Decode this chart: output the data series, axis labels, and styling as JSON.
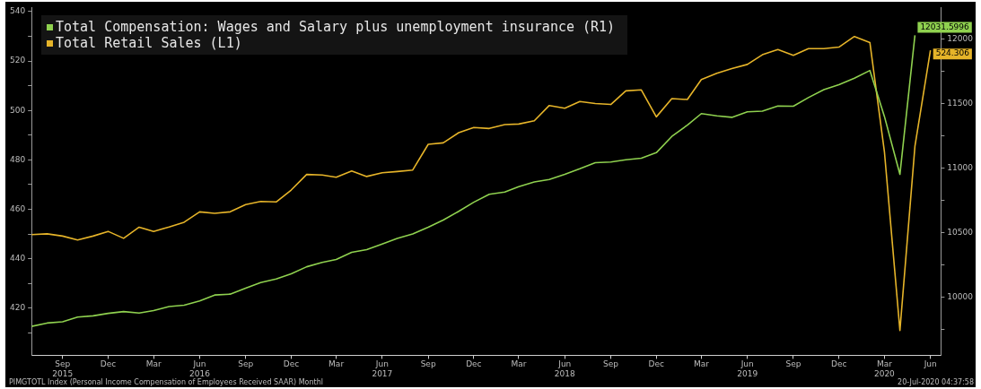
{
  "chart_data": {
    "type": "line",
    "x": [
      "2015-07",
      "2015-08",
      "2015-09",
      "2015-10",
      "2015-11",
      "2015-12",
      "2016-01",
      "2016-02",
      "2016-03",
      "2016-04",
      "2016-05",
      "2016-06",
      "2016-07",
      "2016-08",
      "2016-09",
      "2016-10",
      "2016-11",
      "2016-12",
      "2017-01",
      "2017-02",
      "2017-03",
      "2017-04",
      "2017-05",
      "2017-06",
      "2017-07",
      "2017-08",
      "2017-09",
      "2017-10",
      "2017-11",
      "2017-12",
      "2018-01",
      "2018-02",
      "2018-03",
      "2018-04",
      "2018-05",
      "2018-06",
      "2018-07",
      "2018-08",
      "2018-09",
      "2018-10",
      "2018-11",
      "2018-12",
      "2019-01",
      "2019-02",
      "2019-03",
      "2019-04",
      "2019-05",
      "2019-06",
      "2019-07",
      "2019-08",
      "2019-09",
      "2019-10",
      "2019-11",
      "2019-12",
      "2020-01",
      "2020-02",
      "2020-03",
      "2020-04",
      "2020-05",
      "2020-06"
    ],
    "series": [
      {
        "name": "Total Compensation: Wages and Salary plus unemployment insurance (R1)",
        "color": "#8fd14f",
        "axis": "y2",
        "values": [
          9776,
          9802,
          9812,
          9848,
          9858,
          9877,
          9891,
          9880,
          9899,
          9930,
          9940,
          9974,
          10019,
          10026,
          10072,
          10116,
          10143,
          10183,
          10238,
          10272,
          10294,
          10350,
          10371,
          10415,
          10458,
          10492,
          10545,
          10600,
          10668,
          10738,
          10800,
          10817,
          10859,
          10895,
          10914,
          10954,
          10997,
          11045,
          11050,
          11067,
          11079,
          11122,
          11248,
          11336,
          11425,
          11408,
          11396,
          11439,
          11444,
          11484,
          11482,
          11549,
          11611,
          11649,
          11699,
          11759,
          11403,
          10954,
          12031.5996,
          null
        ],
        "value_labels": [
          null,
          null,
          null,
          null,
          null,
          null,
          null,
          null,
          null,
          null,
          null,
          null,
          null,
          null,
          null,
          null,
          null,
          null,
          null,
          null,
          null,
          null,
          null,
          null,
          null,
          null,
          null,
          null,
          null,
          null,
          null,
          null,
          null,
          null,
          null,
          null,
          null,
          null,
          null,
          null,
          null,
          null,
          null,
          null,
          null,
          null,
          null,
          null,
          null,
          null,
          null,
          null,
          null,
          null,
          null,
          null,
          null,
          null,
          "12031.5996",
          null
        ]
      },
      {
        "name": "Total Retail Sales (L1)",
        "color": "#e6b429",
        "axis": "y",
        "values": [
          449.8,
          450.1,
          449.2,
          447.6,
          449.2,
          451.1,
          448.3,
          452.8,
          451.1,
          452.9,
          454.8,
          459.0,
          458.4,
          459.0,
          461.9,
          463.2,
          463.0,
          467.8,
          474.1,
          473.9,
          473.0,
          475.5,
          473.3,
          474.8,
          475.3,
          475.9,
          486.3,
          486.9,
          491.0,
          493.1,
          492.7,
          494.3,
          494.5,
          495.8,
          502.0,
          500.9,
          503.6,
          502.8,
          502.4,
          507.9,
          508.3,
          497.4,
          504.8,
          504.4,
          512.5,
          515.0,
          516.9,
          518.6,
          522.5,
          524.6,
          522.3,
          525.0,
          525.0,
          525.6,
          529.9,
          527.4,
          483.3,
          411.0,
          485.5,
          524.306
        ],
        "value_labels": [
          null,
          null,
          null,
          null,
          null,
          null,
          null,
          null,
          null,
          null,
          null,
          null,
          null,
          null,
          null,
          null,
          null,
          null,
          null,
          null,
          null,
          null,
          null,
          null,
          null,
          null,
          null,
          null,
          null,
          null,
          null,
          null,
          null,
          null,
          null,
          null,
          null,
          null,
          null,
          null,
          null,
          null,
          null,
          null,
          null,
          null,
          null,
          null,
          null,
          null,
          null,
          null,
          null,
          null,
          null,
          null,
          null,
          null,
          null,
          "524.306"
        ]
      }
    ],
    "xlim": [
      "2015-07-01",
      "2020-06-22"
    ],
    "xticks": [
      {
        "value": "2015-09",
        "label": "Sep\n2015"
      },
      {
        "value": "2015-12",
        "label": "Dec"
      },
      {
        "value": "2016-03",
        "label": "Mar"
      },
      {
        "value": "2016-06",
        "label": "Jun\n2016"
      },
      {
        "value": "2016-09",
        "label": "Sep"
      },
      {
        "value": "2016-12",
        "label": "Dec"
      },
      {
        "value": "2017-03",
        "label": "Mar"
      },
      {
        "value": "2017-06",
        "label": "Jun\n2017"
      },
      {
        "value": "2017-09",
        "label": "Sep"
      },
      {
        "value": "2017-12",
        "label": "Dec"
      },
      {
        "value": "2018-03",
        "label": "Mar"
      },
      {
        "value": "2018-06",
        "label": "Jun\n2018"
      },
      {
        "value": "2018-09",
        "label": "Sep"
      },
      {
        "value": "2018-12",
        "label": "Dec"
      },
      {
        "value": "2019-03",
        "label": "Mar"
      },
      {
        "value": "2019-06",
        "label": "Jun\n2019"
      },
      {
        "value": "2019-09",
        "label": "Sep"
      },
      {
        "value": "2019-12",
        "label": "Dec"
      },
      {
        "value": "2020-03",
        "label": "Mar\n2020"
      },
      {
        "value": "2020-06",
        "label": "Jun"
      }
    ],
    "ylim": [
      401,
      541.6
    ],
    "yticks": [
      {
        "value": 410,
        "label": null
      },
      420,
      {
        "value": 430,
        "label": null
      },
      440,
      {
        "value": 450,
        "label": null
      },
      460,
      {
        "value": 470,
        "label": null
      },
      480,
      {
        "value": 490,
        "label": null
      },
      500,
      {
        "value": 510,
        "label": null
      },
      520,
      {
        "value": 530,
        "label": null
      },
      540
    ],
    "y2lim": [
      9552,
      12247
    ],
    "y2ticks": [
      {
        "value": 9750,
        "label": null
      },
      10000,
      {
        "value": 10250,
        "label": null
      },
      10500,
      {
        "value": 10750,
        "label": null
      },
      11000,
      {
        "value": 11250,
        "label": null
      },
      11500,
      {
        "value": 11750,
        "label": null
      },
      12000
    ],
    "grid": false,
    "legend": "top left",
    "marker": "none",
    "line_style": "solid",
    "annotations": [
      "PIMGTOTL Index (Personal Income Compensation of Employees Received SAAR) Monthl",
      "20-Jul-2020 04:37:58"
    ]
  }
}
